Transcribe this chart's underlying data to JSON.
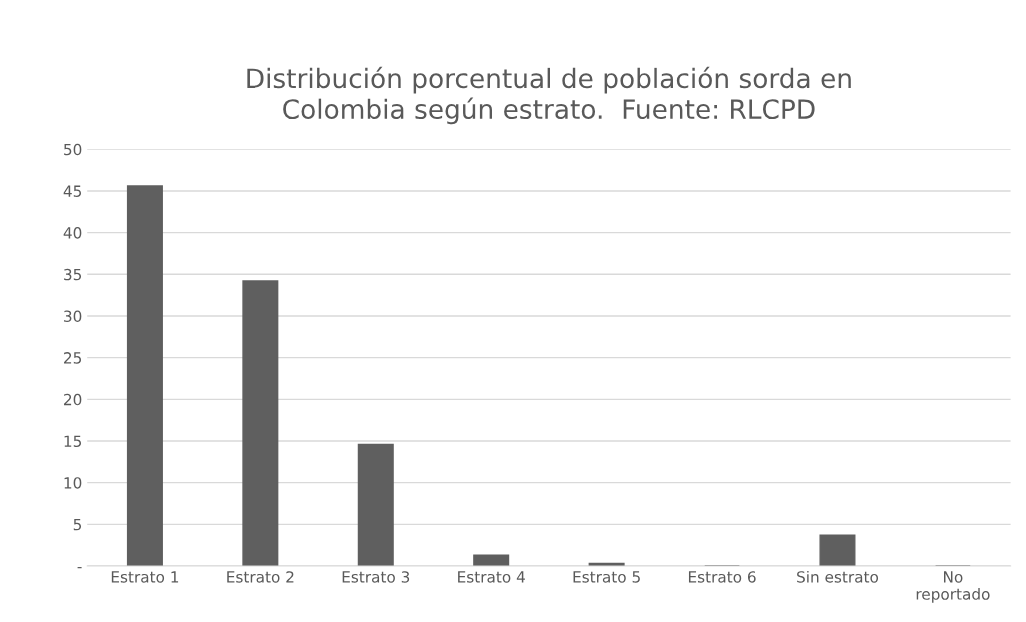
{
  "chart_data": {
    "type": "bar",
    "title": "Distribución porcentual de población sorda en\nColombia según estrato.  Fuente: RLCPD",
    "categories": [
      "Estrato 1",
      "Estrato 2",
      "Estrato 3",
      "Estrato 4",
      "Estrato 5",
      "Estrato 6",
      "Sin estrato",
      "No\nreportado"
    ],
    "values": [
      45.6,
      34.2,
      14.6,
      1.3,
      0.3,
      0,
      3.7,
      0
    ],
    "color": "#5f5f5f",
    "ylim": [
      0,
      50
    ],
    "yticks": [
      {
        "value": 0,
        "label": "-"
      },
      5,
      10,
      15,
      20,
      25,
      30,
      35,
      40,
      45,
      50
    ],
    "grid": "y"
  }
}
